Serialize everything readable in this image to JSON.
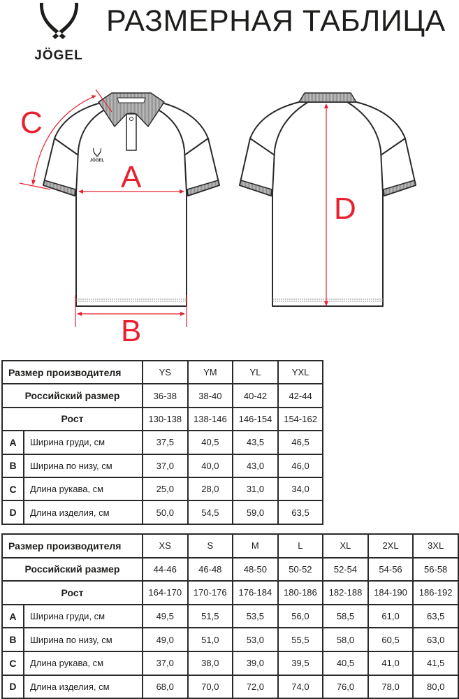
{
  "header": {
    "title": "РАЗМЕРНАЯ ТАБЛИЦА",
    "logo_text": "JÖGEL"
  },
  "diagram": {
    "labels": {
      "A": "A",
      "B": "B",
      "C": "C",
      "D": "D"
    },
    "chest_logo_text": "JÖGEL",
    "accent_color": "#e8202f",
    "outline_color": "#2a2a2a",
    "rib_color": "#a9a9a9"
  },
  "tables": [
    {
      "row_headers": {
        "maker": "Размер производителя",
        "russian": "Российский размер",
        "height": "Рост"
      },
      "sizes": [
        "YS",
        "YM",
        "YL",
        "YXL"
      ],
      "russian": [
        "36-38",
        "38-40",
        "40-42",
        "42-44"
      ],
      "height": [
        "130-138",
        "138-146",
        "146-154",
        "154-162"
      ],
      "measures": [
        {
          "letter": "A",
          "label": "Ширина груди, см",
          "values": [
            "37,5",
            "40,5",
            "43,5",
            "46,5"
          ]
        },
        {
          "letter": "B",
          "label": "Ширина по низу, см",
          "values": [
            "37,0",
            "40,0",
            "43,0",
            "46,0"
          ]
        },
        {
          "letter": "C",
          "label": "Длина рукава, см",
          "values": [
            "25,0",
            "28,0",
            "31,0",
            "34,0"
          ]
        },
        {
          "letter": "D",
          "label": "Длина изделия, см",
          "values": [
            "50,0",
            "54,5",
            "59,0",
            "63,5"
          ]
        }
      ]
    },
    {
      "row_headers": {
        "maker": "Размер производителя",
        "russian": "Российский размер",
        "height": "Рост"
      },
      "sizes": [
        "XS",
        "S",
        "M",
        "L",
        "XL",
        "2XL",
        "3XL"
      ],
      "russian": [
        "44-46",
        "46-48",
        "48-50",
        "50-52",
        "52-54",
        "54-56",
        "56-58"
      ],
      "height": [
        "164-170",
        "170-176",
        "176-184",
        "180-186",
        "182-188",
        "184-190",
        "186-192"
      ],
      "measures": [
        {
          "letter": "A",
          "label": "Ширина груди, см",
          "values": [
            "49,5",
            "51,5",
            "53,5",
            "56,0",
            "58,5",
            "61,0",
            "63,5"
          ]
        },
        {
          "letter": "B",
          "label": "Ширина по низу, см",
          "values": [
            "49,0",
            "51,0",
            "53,0",
            "55,5",
            "58,0",
            "60,5",
            "63,0"
          ]
        },
        {
          "letter": "C",
          "label": "Длина рукава, см",
          "values": [
            "37,0",
            "38,0",
            "39,0",
            "39,5",
            "40,5",
            "41,0",
            "41,5"
          ]
        },
        {
          "letter": "D",
          "label": "Длина изделия, см",
          "values": [
            "68,0",
            "70,0",
            "72,0",
            "74,0",
            "76,0",
            "78,0",
            "80,0"
          ]
        }
      ]
    }
  ]
}
